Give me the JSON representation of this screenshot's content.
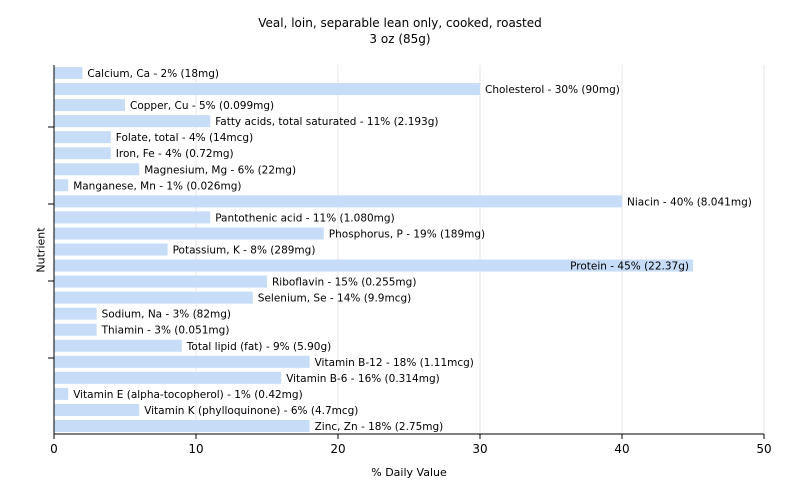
{
  "chart_data": {
    "type": "bar",
    "orientation": "horizontal",
    "title": "Veal, loin, separable lean only, cooked, roasted",
    "subtitle": "3 oz (85g)",
    "xlabel": "% Daily Value",
    "ylabel": "Nutrient",
    "xlim": [
      0,
      50
    ],
    "xticks": [
      0,
      10,
      20,
      30,
      40,
      50
    ],
    "grid": true,
    "bar_color": "#c6dcf7",
    "categories": [
      "Calcium, Ca - 2% (18mg)",
      "Cholesterol - 30% (90mg)",
      "Copper, Cu - 5% (0.099mg)",
      "Fatty acids, total saturated - 11% (2.193g)",
      "Folate, total - 4% (14mcg)",
      "Iron, Fe - 4% (0.72mg)",
      "Magnesium, Mg - 6% (22mg)",
      "Manganese, Mn - 1% (0.026mg)",
      "Niacin - 40% (8.041mg)",
      "Pantothenic acid - 11% (1.080mg)",
      "Phosphorus, P - 19% (189mg)",
      "Potassium, K - 8% (289mg)",
      "Protein - 45% (22.37g)",
      "Riboflavin - 15% (0.255mg)",
      "Selenium, Se - 14% (9.9mcg)",
      "Sodium, Na - 3% (82mg)",
      "Thiamin - 3% (0.051mg)",
      "Total lipid (fat) - 9% (5.90g)",
      "Vitamin B-12 - 18% (1.11mcg)",
      "Vitamin B-6 - 16% (0.314mg)",
      "Vitamin E (alpha-tocopherol) - 1% (0.42mg)",
      "Vitamin K (phylloquinone) - 6% (4.7mcg)",
      "Zinc, Zn - 18% (2.75mg)"
    ],
    "values": [
      2,
      30,
      5,
      11,
      4,
      4,
      6,
      1,
      40,
      11,
      19,
      8,
      45,
      15,
      14,
      3,
      3,
      9,
      18,
      16,
      1,
      6,
      18
    ]
  }
}
